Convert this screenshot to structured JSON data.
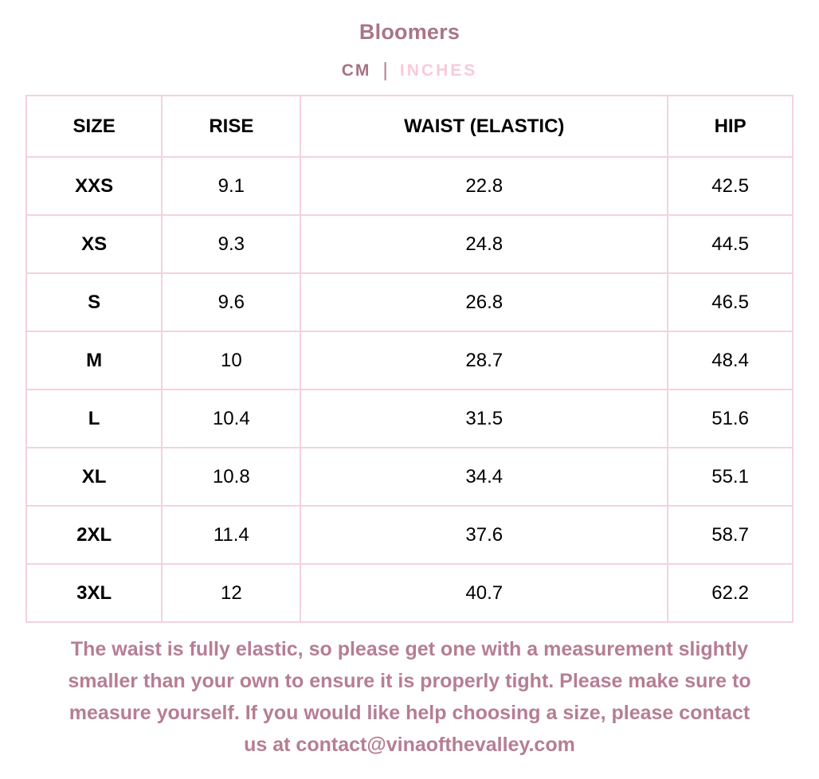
{
  "header": {
    "title": "Bloomers",
    "units": {
      "cm": "CM",
      "separator": "|",
      "inches": "INCHES"
    }
  },
  "table": {
    "columns": [
      "SIZE",
      "RISE",
      "WAIST (ELASTIC)",
      "HIP"
    ],
    "rows": [
      {
        "size": "XXS",
        "rise": "9.1",
        "waist": "22.8",
        "hip": "42.5"
      },
      {
        "size": "XS",
        "rise": "9.3",
        "waist": "24.8",
        "hip": "44.5"
      },
      {
        "size": "S",
        "rise": "9.6",
        "waist": "26.8",
        "hip": "46.5"
      },
      {
        "size": "M",
        "rise": "10",
        "waist": "28.7",
        "hip": "48.4"
      },
      {
        "size": "L",
        "rise": "10.4",
        "waist": "31.5",
        "hip": "51.6"
      },
      {
        "size": "XL",
        "rise": "10.8",
        "waist": "34.4",
        "hip": "55.1"
      },
      {
        "size": "2XL",
        "rise": "11.4",
        "waist": "37.6",
        "hip": "58.7"
      },
      {
        "size": "3XL",
        "rise": "12",
        "waist": "40.7",
        "hip": "62.2"
      }
    ]
  },
  "note": {
    "full_text": "The waist is fully elastic, so please get one with a measurement slightly smaller than your own to ensure it is properly tight. Please make sure to measure yourself. If you would like help choosing a size, please contact us at contact@vinaofthevalley.com",
    "lines": [
      "The waist is fully elastic, so please get one with a measurement slightly",
      "smaller than your own to ensure it is properly tight. Please make sure to",
      "measure yourself. If you would like help choosing a size, please contact",
      "us at contact@vinaofthevalley.com"
    ],
    "contact_email": "contact@vinaofthevalley.com"
  },
  "colors": {
    "title_text": "#a97589",
    "unit_active": "#a67184",
    "unit_inactive": "#f8cada",
    "table_border": "#f4d2de",
    "table_text": "#000000",
    "note_text": "#b57e93",
    "background": "#ffffff"
  }
}
